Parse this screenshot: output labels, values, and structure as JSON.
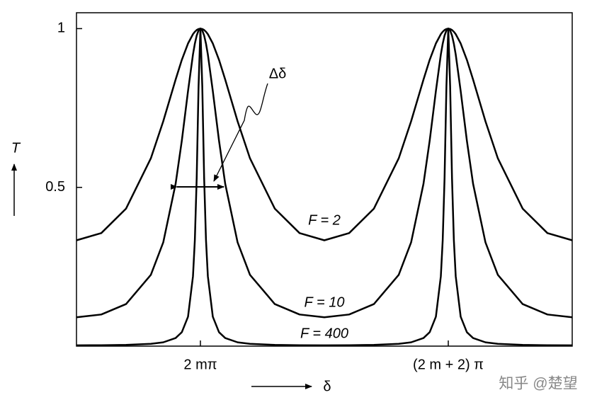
{
  "chart_data": {
    "type": "line",
    "x_label": "δ",
    "y_label": "T",
    "annotation": "Δδ",
    "watermark": "知乎 @楚望",
    "x": [
      -1,
      -0.8,
      -0.6,
      -0.4,
      -0.3,
      -0.2,
      -0.15,
      -0.1,
      -0.06,
      -0.045,
      -0.03,
      -0.015,
      0,
      0.015,
      0.03,
      0.045,
      0.06,
      0.1,
      0.15,
      0.2,
      0.3,
      0.4,
      0.6,
      0.8,
      1,
      1.2,
      1.4,
      1.6,
      1.7,
      1.8,
      1.85,
      1.9,
      1.94,
      1.955,
      1.97,
      1.985,
      2,
      2.015,
      2.03,
      2.045,
      2.06,
      2.1,
      2.15,
      2.2,
      2.3,
      2.4,
      2.6,
      2.8,
      3
    ],
    "series": [
      {
        "name": "F = 2",
        "color": "#000000",
        "values": [
          0.3333,
          0.356,
          0.4331,
          0.5914,
          0.7081,
          0.8396,
          0.9017,
          0.9533,
          0.9826,
          0.9901,
          0.9956,
          0.9989,
          1,
          0.9989,
          0.9956,
          0.9901,
          0.9826,
          0.9533,
          0.9017,
          0.8396,
          0.7081,
          0.5914,
          0.4331,
          0.356,
          0.3333,
          0.356,
          0.4331,
          0.5914,
          0.7081,
          0.8396,
          0.9017,
          0.9533,
          0.9826,
          0.9901,
          0.9956,
          0.9989,
          1,
          0.9989,
          0.9956,
          0.9901,
          0.9826,
          0.9533,
          0.9017,
          0.8396,
          0.7081,
          0.5914,
          0.4331,
          0.356,
          0.3333
        ]
      },
      {
        "name": "F = 10",
        "color": "#000000",
        "values": [
          0.0909,
          0.0996,
          0.1325,
          0.2245,
          0.3267,
          0.5115,
          0.6472,
          0.8034,
          0.9186,
          0.9525,
          0.9783,
          0.9945,
          1,
          0.9945,
          0.9783,
          0.9525,
          0.9186,
          0.8034,
          0.6472,
          0.5115,
          0.3267,
          0.2245,
          0.1325,
          0.0996,
          0.0909,
          0.0996,
          0.1325,
          0.2245,
          0.3267,
          0.5115,
          0.6472,
          0.8034,
          0.9186,
          0.9525,
          0.9783,
          0.9945,
          1,
          0.9945,
          0.9783,
          0.9525,
          0.9186,
          0.8034,
          0.6472,
          0.5115,
          0.3267,
          0.2245,
          0.1325,
          0.0996,
          0.0909
        ]
      },
      {
        "name": "F = 400",
        "color": "#000000",
        "values": [
          0.0025,
          0.0028,
          0.0038,
          0.0072,
          0.012,
          0.0255,
          0.0439,
          0.0927,
          0.2202,
          0.3338,
          0.5298,
          0.8183,
          1,
          0.8183,
          0.5298,
          0.3338,
          0.2202,
          0.0927,
          0.0439,
          0.0255,
          0.012,
          0.0072,
          0.0038,
          0.0028,
          0.0025,
          0.0028,
          0.0038,
          0.0072,
          0.012,
          0.0255,
          0.0439,
          0.0927,
          0.2202,
          0.3338,
          0.5298,
          0.8183,
          1,
          0.8183,
          0.5298,
          0.3338,
          0.2202,
          0.0927,
          0.0439,
          0.0255,
          0.012,
          0.0072,
          0.0038,
          0.0028,
          0.0025
        ]
      }
    ],
    "xlim": [
      -1,
      3
    ],
    "xticks": [
      {
        "value": 0,
        "label": "2 mπ"
      },
      {
        "value": 2,
        "label": "(2 m + 2) π"
      }
    ],
    "ylim": [
      0,
      1.05
    ],
    "yticks": [
      0.5,
      1
    ],
    "grid": false
  }
}
